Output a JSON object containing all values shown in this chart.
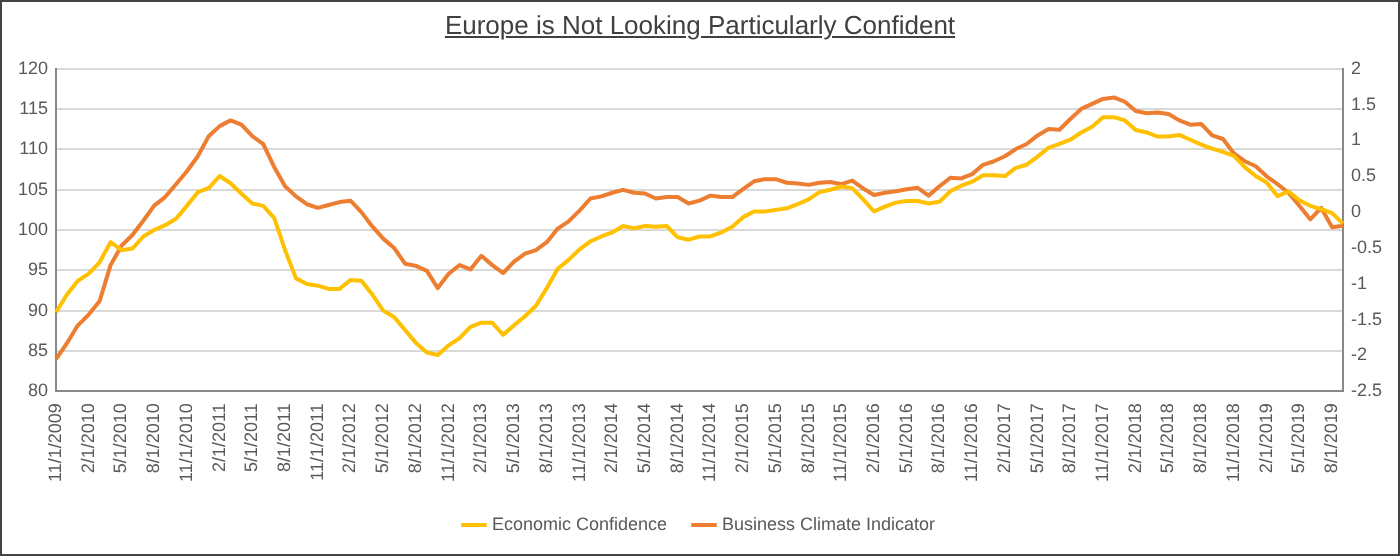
{
  "chart_data": {
    "type": "line",
    "title": "Europe is Not Looking Particularly Confident",
    "categories": [
      "11/1/2009",
      null,
      null,
      "2/1/2010",
      null,
      null,
      "5/1/2010",
      null,
      null,
      "8/1/2010",
      null,
      null,
      "11/1/2010",
      null,
      null,
      "2/1/2011",
      null,
      null,
      "5/1/2011",
      null,
      null,
      "8/1/2011",
      null,
      null,
      "11/1/2011",
      null,
      null,
      "2/1/2012",
      null,
      null,
      "5/1/2012",
      null,
      null,
      "8/1/2012",
      null,
      null,
      "11/1/2012",
      null,
      null,
      "2/1/2013",
      null,
      null,
      "5/1/2013",
      null,
      null,
      "8/1/2013",
      null,
      null,
      "11/1/2013",
      null,
      null,
      "2/1/2014",
      null,
      null,
      "5/1/2014",
      null,
      null,
      "8/1/2014",
      null,
      null,
      "11/1/2014",
      null,
      null,
      "2/1/2015",
      null,
      null,
      "5/1/2015",
      null,
      null,
      "8/1/2015",
      null,
      null,
      "11/1/2015",
      null,
      null,
      "2/1/2016",
      null,
      null,
      "5/1/2016",
      null,
      null,
      "8/1/2016",
      null,
      null,
      "11/1/2016",
      null,
      null,
      "2/1/2017",
      null,
      null,
      "5/1/2017",
      null,
      null,
      "8/1/2017",
      null,
      null,
      "11/1/2017",
      null,
      null,
      "2/1/2018",
      null,
      null,
      "5/1/2018",
      null,
      null,
      "8/1/2018",
      null,
      null,
      "11/1/2018",
      null,
      null,
      "2/1/2019",
      null,
      null,
      "5/1/2019",
      null,
      null,
      "8/1/2019",
      null
    ],
    "series": [
      {
        "name": "Economic Confidence",
        "color": "#ffc000",
        "values": [
          89.8,
          92,
          93.7,
          94.6,
          96,
          98.5,
          97.5,
          97.7,
          99.2,
          100,
          100.6,
          101.4,
          103,
          104.7,
          105.2,
          106.7,
          105.8,
          104.5,
          103.3,
          103,
          101.5,
          97.5,
          94,
          93.3,
          93.1,
          92.7,
          92.7,
          93.8,
          93.7,
          92,
          90,
          89.2,
          87.6,
          86,
          84.8,
          84.5,
          85.7,
          86.6,
          88,
          88.5,
          88.5,
          87,
          88.2,
          89.3,
          90.6,
          92.8,
          95.2,
          96.3,
          97.6,
          98.6,
          99.2,
          99.7,
          100.5,
          100.2,
          100.5,
          100.4,
          100.5,
          99.1,
          98.8,
          99.2,
          99.2,
          99.7,
          100.4,
          101.6,
          102.3,
          102.3,
          102.5,
          102.7,
          103.2,
          103.8,
          104.7,
          105,
          105.4,
          105.2,
          103.8,
          102.3,
          102.9,
          103.4,
          103.6,
          103.6,
          103.3,
          103.5,
          104.8,
          105.5,
          106,
          106.8,
          106.8,
          106.7,
          107.7,
          108.1,
          109.1,
          110.2,
          110.7,
          111.2,
          112.1,
          112.8,
          114,
          114,
          113.6,
          112.4,
          112.1,
          111.6,
          111.6,
          111.8,
          111.2,
          110.6,
          110.1,
          109.7,
          109.2,
          107.8,
          106.7,
          105.9,
          104.2,
          104.8,
          103.7,
          103,
          102.6,
          102.1,
          100.8
        ]
      },
      {
        "name": "Business Climate Indicator",
        "color": "#ed7d31",
        "axis": "y2",
        "values": [
          -2.05,
          -1.83,
          -1.58,
          -1.43,
          -1.24,
          -0.74,
          -0.47,
          -0.32,
          -0.12,
          0.09,
          0.21,
          0.39,
          0.57,
          0.78,
          1.06,
          1.2,
          1.28,
          1.22,
          1.06,
          0.95,
          0.63,
          0.36,
          0.22,
          0.11,
          0.06,
          0.1,
          0.14,
          0.16,
          0,
          -0.2,
          -0.37,
          -0.5,
          -0.72,
          -0.75,
          -0.82,
          -1.06,
          -0.86,
          -0.74,
          -0.8,
          -0.61,
          -0.74,
          -0.85,
          -0.69,
          -0.58,
          -0.53,
          -0.42,
          -0.23,
          -0.13,
          0.02,
          0.19,
          0.22,
          0.27,
          0.31,
          0.27,
          0.26,
          0.19,
          0.21,
          0.21,
          0.12,
          0.16,
          0.23,
          0.21,
          0.21,
          0.32,
          0.43,
          0.46,
          0.46,
          0.41,
          0.4,
          0.38,
          0.41,
          0.42,
          0.39,
          0.44,
          0.33,
          0.24,
          0.27,
          0.29,
          0.32,
          0.34,
          0.23,
          0.36,
          0.48,
          0.47,
          0.53,
          0.66,
          0.71,
          0.78,
          0.88,
          0.95,
          1.07,
          1.16,
          1.15,
          1.3,
          1.44,
          1.51,
          1.58,
          1.6,
          1.54,
          1.41,
          1.38,
          1.39,
          1.37,
          1.28,
          1.22,
          1.23,
          1.07,
          1.02,
          0.82,
          0.71,
          0.64,
          0.5,
          0.39,
          0.27,
          0.09,
          -0.1,
          0.06,
          -0.21,
          -0.19
        ]
      }
    ],
    "ylim": [
      80,
      120
    ],
    "yticks": [
      80,
      85,
      90,
      95,
      100,
      105,
      110,
      115,
      120
    ],
    "y2lim": [
      -2.5,
      2
    ],
    "y2ticks": [
      -2.5,
      -2,
      -1.5,
      -1,
      -0.5,
      0,
      0.5,
      1,
      1.5,
      2
    ],
    "grid": "y",
    "legend": "bottom",
    "marker": "none",
    "line_style": "solid"
  }
}
